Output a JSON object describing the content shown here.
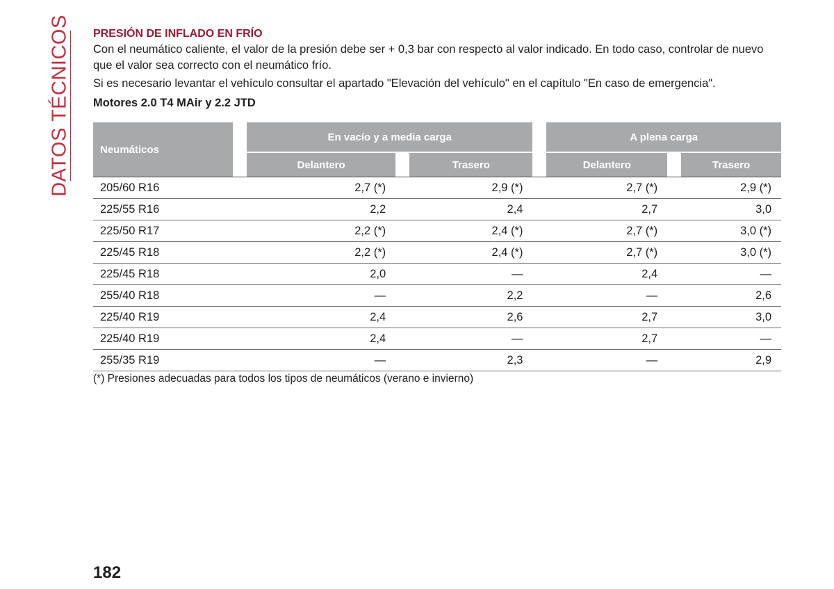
{
  "section_title": "DATOS TÉCNICOS",
  "heading": "PRESIÓN DE INFLADO EN FRÍO",
  "paragraphs": [
    "Con el neumático caliente, el valor de la presión debe ser + 0,3 bar con respecto al valor indicado. En todo caso, controlar de nuevo que el valor sea correcto con el neumático frío.",
    "Si es necesario levantar el vehículo consultar el apartado \"Elevación del vehículo\" en el capítulo \"En caso de emergencia\"."
  ],
  "subheading": "Motores 2.0 T4 MAir y 2.2 JTD",
  "table": {
    "col_tyres": "Neumáticos",
    "group1": "En vacío y a media carga",
    "group2": "A plena carga",
    "front": "Delantero",
    "rear": "Trasero",
    "rows": [
      [
        "205/60 R16",
        "2,7 (*)",
        "2,9 (*)",
        "2,7 (*)",
        "2,9 (*)"
      ],
      [
        "225/55 R16",
        "2,2",
        "2,4",
        "2,7",
        "3,0"
      ],
      [
        "225/50 R17",
        "2,2 (*)",
        "2,4 (*)",
        "2,7 (*)",
        "3,0 (*)"
      ],
      [
        "225/45 R18",
        "2,2 (*)",
        "2,4 (*)",
        "2,7 (*)",
        "3,0 (*)"
      ],
      [
        "225/45 R18",
        "2,0",
        "—",
        "2,4",
        "—"
      ],
      [
        "255/40 R18",
        "—",
        "2,2",
        "—",
        "2,6"
      ],
      [
        "225/40 R19",
        "2,4",
        "2,6",
        "2,7",
        "3,0"
      ],
      [
        "225/40 R19",
        "2,4",
        "—",
        "2,7",
        "—"
      ],
      [
        "255/35 R19",
        "—",
        "2,3",
        "—",
        "2,9"
      ]
    ]
  },
  "footnote": "(*) Presiones adecuadas para todos los tipos de neumáticos (verano e invierno)",
  "page_number": "182",
  "colors": {
    "accent": "#c2303f",
    "heading": "#9a1a33",
    "header_bg": "#a7a9ab"
  }
}
